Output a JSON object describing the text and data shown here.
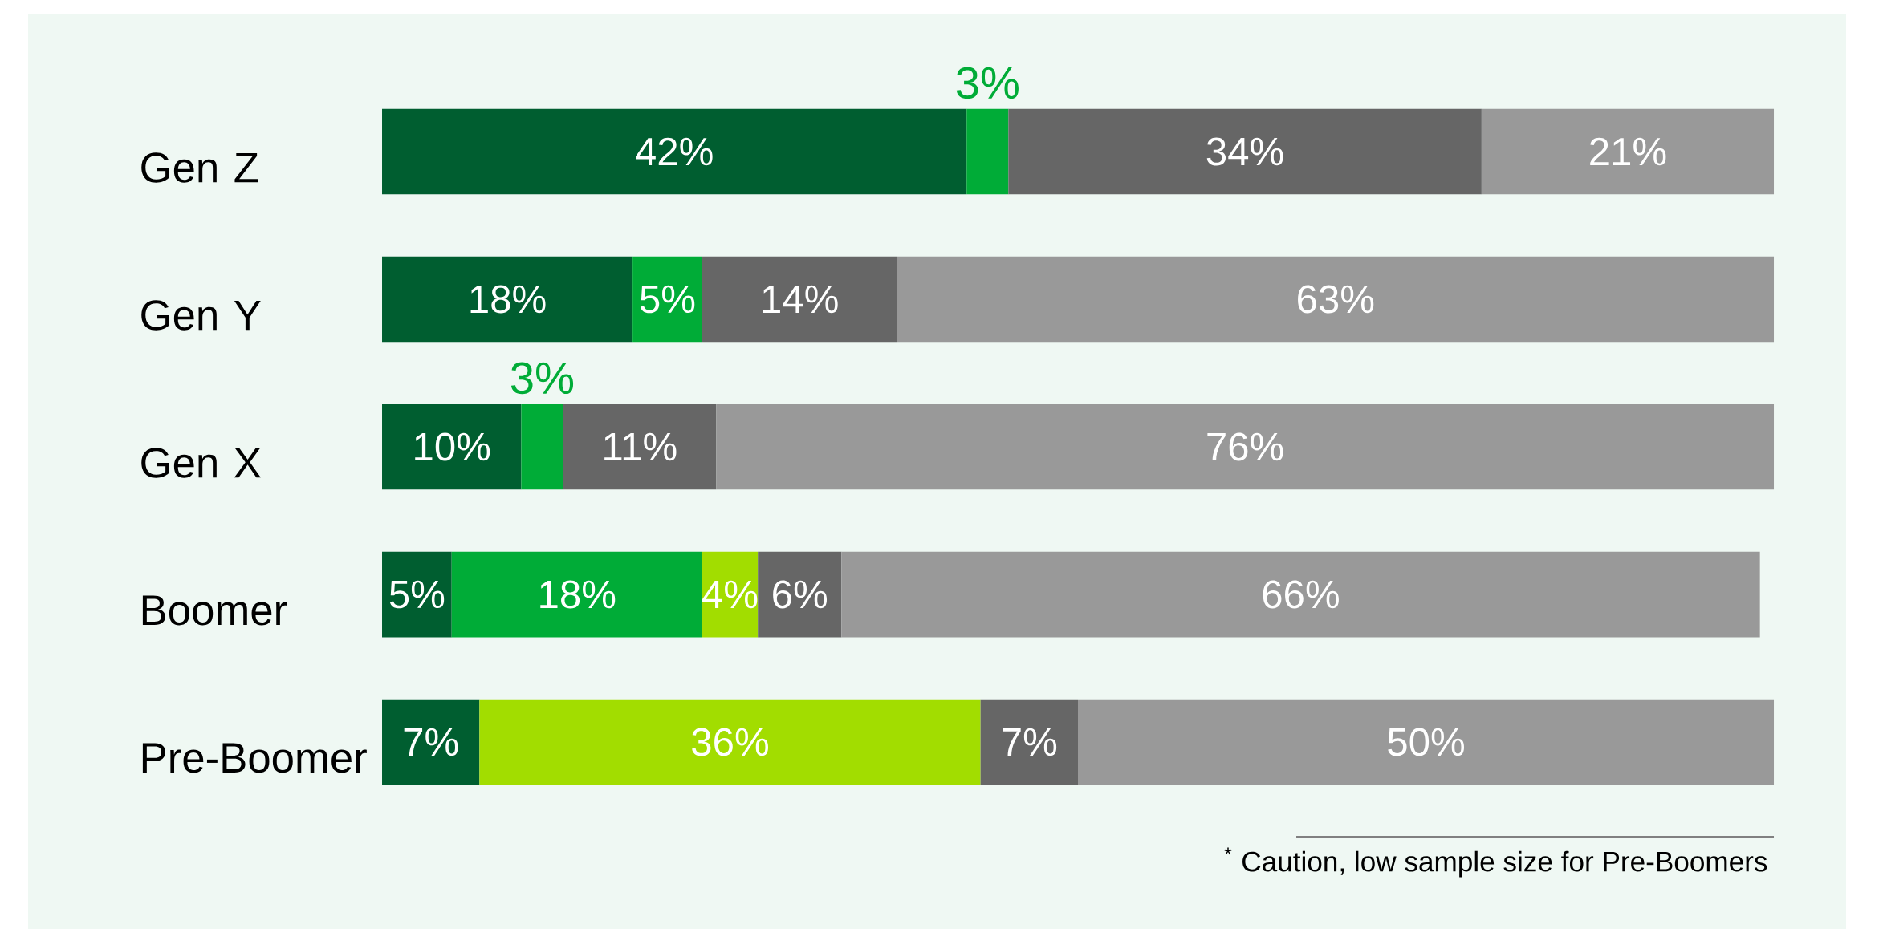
{
  "chart_data": {
    "type": "bar",
    "orientation": "horizontal",
    "stacked": true,
    "categories": [
      "Gen Z",
      "Gen Y",
      "Gen X",
      "Boomer",
      "Pre-Boomer"
    ],
    "xlim": [
      0,
      100
    ],
    "tick_labels": "y",
    "series": [
      {
        "color": "#005e30",
        "values": [
          42,
          18,
          10,
          5,
          7
        ],
        "value_labels": [
          "42%",
          "18%",
          "10%",
          "5%",
          "7%"
        ]
      },
      {
        "color": "#00ac37",
        "values": [
          3,
          5,
          3,
          18,
          null
        ],
        "value_labels": [
          "3%",
          "5%",
          "3%",
          "18%",
          null
        ]
      },
      {
        "color": "#a2dd00",
        "values": [
          null,
          null,
          null,
          4,
          36
        ],
        "value_labels": [
          null,
          null,
          null,
          "4%",
          "36%"
        ]
      },
      {
        "color": "#666666",
        "values": [
          34,
          14,
          11,
          6,
          7
        ],
        "value_labels": [
          "34%",
          "14%",
          "11%",
          "6%",
          "7%"
        ]
      },
      {
        "color": "#999999",
        "values": [
          21,
          63,
          76,
          66,
          50
        ],
        "value_labels": [
          "21%",
          "63%",
          "76%",
          "66%",
          "50%"
        ]
      }
    ],
    "annotations": [
      "$^{*}$ Caution, low sample size for Pre-Boomers"
    ]
  }
}
